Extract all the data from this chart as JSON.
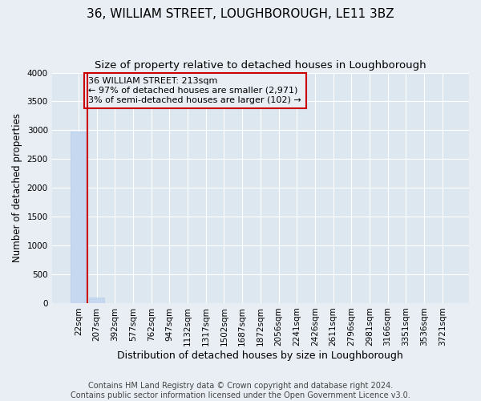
{
  "title": "36, WILLIAM STREET, LOUGHBOROUGH, LE11 3BZ",
  "subtitle": "Size of property relative to detached houses in Loughborough",
  "xlabel": "Distribution of detached houses by size in Loughborough",
  "ylabel": "Number of detached properties",
  "footer_line1": "Contains HM Land Registry data © Crown copyright and database right 2024.",
  "footer_line2": "Contains public sector information licensed under the Open Government Licence v3.0.",
  "categories": [
    "22sqm",
    "207sqm",
    "392sqm",
    "577sqm",
    "762sqm",
    "947sqm",
    "1132sqm",
    "1317sqm",
    "1502sqm",
    "1687sqm",
    "1872sqm",
    "2056sqm",
    "2241sqm",
    "2426sqm",
    "2611sqm",
    "2796sqm",
    "2981sqm",
    "3166sqm",
    "3351sqm",
    "3536sqm",
    "3721sqm"
  ],
  "bar_values": [
    2971,
    102,
    0,
    0,
    0,
    0,
    0,
    0,
    0,
    0,
    0,
    0,
    0,
    0,
    0,
    0,
    0,
    0,
    0,
    0,
    0
  ],
  "bar_color": "#c5d8ef",
  "bar_edge_color": "#b8cde8",
  "ylim": [
    0,
    4000
  ],
  "yticks": [
    0,
    500,
    1000,
    1500,
    2000,
    2500,
    3000,
    3500,
    4000
  ],
  "annotation_text_line1": "36 WILLIAM STREET: 213sqm",
  "annotation_text_line2": "← 97% of detached houses are smaller (2,971)",
  "annotation_text_line3": "3% of semi-detached houses are larger (102) →",
  "vline_color": "#cc0000",
  "background_color": "#e8eef4",
  "plot_bg_color": "#dce7f0",
  "grid_color": "#ffffff",
  "title_fontsize": 11,
  "subtitle_fontsize": 9.5,
  "ylabel_fontsize": 8.5,
  "xlabel_fontsize": 9,
  "tick_fontsize": 7.5,
  "annotation_fontsize": 8,
  "annotation_box_edge_color": "#cc0000",
  "footer_fontsize": 7
}
